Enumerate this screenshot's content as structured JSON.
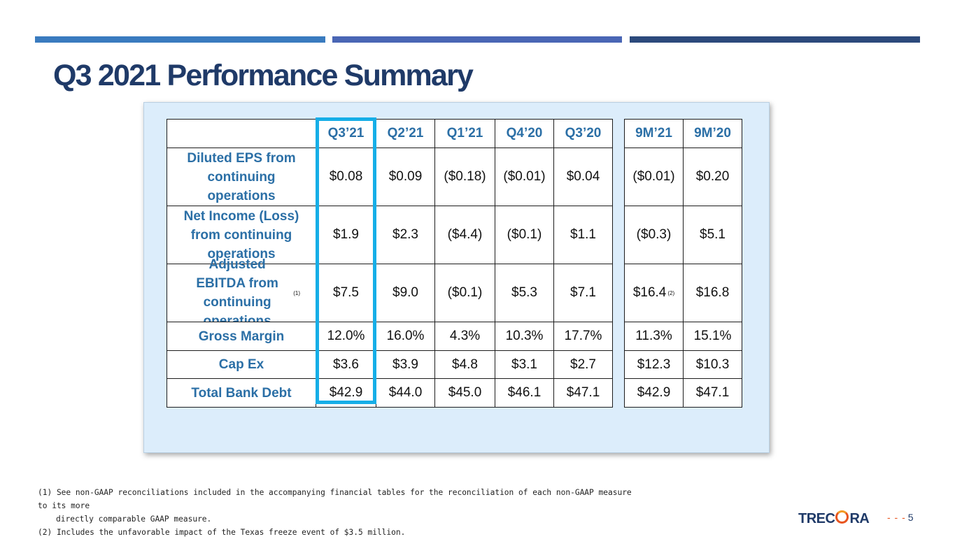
{
  "slide": {
    "title": "Q3 2021 Performance Summary",
    "page_number": "5",
    "logo_text_left": "TREC",
    "logo_text_right": "RA",
    "accent_colors": {
      "bar1": "#3a7bbf",
      "bar2": "#4a66b5",
      "bar3": "#2c4a7c",
      "title": "#1f3a68",
      "highlight": "#16aee7",
      "panel": "#dcedfb",
      "label": "#2b6fa6"
    }
  },
  "table": {
    "headers": [
      "",
      "Q3’21",
      "Q2’21",
      "Q1’21",
      "Q4’20",
      "Q3’20",
      "",
      "9M’21",
      "9M’20"
    ],
    "rows": [
      {
        "label": "Diluted EPS from continuing operations",
        "note": "",
        "values": [
          "$0.08",
          "$0.09",
          "($0.18)",
          "($0.01)",
          "$0.04",
          "",
          "($0.01)",
          "$0.20"
        ]
      },
      {
        "label": "Net Income (Loss) from continuing operations",
        "note": "",
        "values": [
          "$1.9",
          "$2.3",
          "($4.4)",
          "($0.1)",
          "$1.1",
          "",
          "($0.3)",
          "$5.1"
        ]
      },
      {
        "label": "Adjusted EBITDA from continuing operations",
        "note": "(1)",
        "values": [
          "$7.5",
          "$9.0",
          "($0.1)",
          "$5.3",
          "$7.1",
          "",
          "$16.4",
          "$16.8"
        ]
      },
      {
        "label": "Gross Margin",
        "note": "",
        "values": [
          "12.0%",
          "16.0%",
          "4.3%",
          "10.3%",
          "17.7%",
          "",
          "11.3%",
          "15.1%"
        ]
      },
      {
        "label": "Cap Ex",
        "note": "",
        "values": [
          "$3.6",
          "$3.9",
          "$4.8",
          "$3.1",
          "$2.7",
          "",
          "$12.3",
          "$10.3"
        ]
      },
      {
        "label": "Total Bank Debt",
        "note": "",
        "values": [
          "$42.9",
          "$44.0",
          "$45.0",
          "$46.1",
          "$47.1",
          "",
          "$42.9",
          "$47.1"
        ]
      }
    ],
    "ebitda_9m_note": "(2)"
  },
  "footnotes": {
    "note1_line1": "(1) See non-GAAP reconciliations included in the accompanying financial tables for the reconciliation of each non-GAAP measure to its more",
    "note1_line2": "directly comparable GAAP measure.",
    "note2": "(2) Includes the unfavorable impact of the Texas freeze event of $3.5 million."
  }
}
